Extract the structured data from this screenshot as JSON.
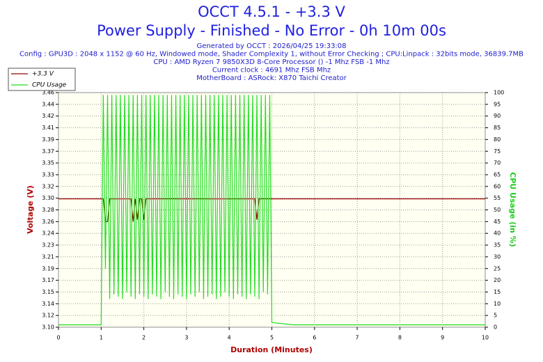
{
  "chart_data": {
    "type": "line",
    "title": "OCCT 4.5.1 - +3.3 V",
    "subtitle": "Power Supply - Finished - No Error - 0h 10m 00s",
    "info_lines": [
      "Generated by OCCT : 2026/04/25 19:33:08",
      "Config : GPU3D : 2048 x 1152 @ 60 Hz, Windowed mode, Shader Complexity 1, without Error Checking ; CPU:Linpack : 32bits mode, 36839.7MB",
      "CPU : AMD Ryzen 7 9850X3D 8-Core Processor () -1 Mhz FSB -1 Mhz",
      "Current clock : 4691 Mhz FSB  Mhz",
      "MotherBoard : ASRock: X870 Taichi Creator"
    ],
    "x_label": "Duration (Minutes)",
    "y_label": "Voltage (V)",
    "y2_label": "CPU Usage (in %)",
    "grid": true,
    "legend": "top-left",
    "xlim": [
      0,
      10
    ],
    "xticks": [
      0,
      1,
      2,
      3,
      4,
      5,
      6,
      7,
      8,
      9,
      10
    ],
    "ylim": [
      3.1,
      3.46
    ],
    "yticks": [
      {
        "value": 3.1,
        "label": "3.10"
      },
      {
        "value": 3.118,
        "label": "3.12"
      },
      {
        "value": 3.136,
        "label": "3.14"
      },
      {
        "value": 3.154,
        "label": "3.15"
      },
      {
        "value": 3.172,
        "label": "3.17"
      },
      {
        "value": 3.19,
        "label": "3.19"
      },
      {
        "value": 3.208,
        "label": "3.21"
      },
      {
        "value": 3.226,
        "label": "3.23"
      },
      {
        "value": 3.244,
        "label": "3.24"
      },
      {
        "value": 3.262,
        "label": "3.26"
      },
      {
        "value": 3.28,
        "label": "3.28"
      },
      {
        "value": 3.298,
        "label": "3.30"
      },
      {
        "value": 3.316,
        "label": "3.32"
      },
      {
        "value": 3.334,
        "label": "3.33"
      },
      {
        "value": 3.352,
        "label": "3.35"
      },
      {
        "value": 3.37,
        "label": "3.37"
      },
      {
        "value": 3.388,
        "label": "3.39"
      },
      {
        "value": 3.406,
        "label": "3.41"
      },
      {
        "value": 3.424,
        "label": "3.42"
      },
      {
        "value": 3.442,
        "label": "3.44"
      },
      {
        "value": 3.46,
        "label": "3.46"
      }
    ],
    "y2lim": [
      0,
      100
    ],
    "y2ticks": [
      0,
      5,
      10,
      15,
      20,
      25,
      30,
      35,
      40,
      45,
      50,
      55,
      60,
      65,
      70,
      75,
      80,
      85,
      90,
      95,
      100
    ],
    "x": [
      0,
      0.5,
      1,
      1.05,
      1.1,
      1.15,
      1.2,
      1.25,
      1.3,
      1.35,
      1.4,
      1.45,
      1.5,
      1.55,
      1.6,
      1.65,
      1.7,
      1.75,
      1.8,
      1.85,
      1.9,
      1.95,
      2,
      2.05,
      2.1,
      2.15,
      2.2,
      2.25,
      2.3,
      2.35,
      2.4,
      2.45,
      2.5,
      2.55,
      2.6,
      2.65,
      2.7,
      2.75,
      2.8,
      2.85,
      2.9,
      2.95,
      3,
      3.05,
      3.1,
      3.15,
      3.2,
      3.25,
      3.3,
      3.35,
      3.4,
      3.45,
      3.5,
      3.55,
      3.6,
      3.65,
      3.7,
      3.75,
      3.8,
      3.85,
      3.9,
      3.95,
      4,
      4.05,
      4.1,
      4.15,
      4.2,
      4.25,
      4.3,
      4.35,
      4.4,
      4.45,
      4.5,
      4.55,
      4.6,
      4.65,
      4.7,
      4.75,
      4.8,
      4.85,
      4.9,
      4.95,
      5,
      5.5,
      6,
      6.5,
      7,
      7.5,
      8,
      8.5,
      9,
      9.5,
      10
    ],
    "series": [
      {
        "name": "+3.3 V",
        "color": "#a00000",
        "values": [
          3.297,
          3.297,
          3.297,
          3.297,
          3.262,
          3.262,
          3.297,
          3.297,
          3.297,
          3.297,
          3.297,
          3.297,
          3.297,
          3.297,
          3.297,
          3.297,
          3.297,
          3.262,
          3.297,
          3.265,
          3.297,
          3.297,
          3.265,
          3.297,
          3.297,
          3.297,
          3.297,
          3.297,
          3.297,
          3.297,
          3.297,
          3.297,
          3.297,
          3.297,
          3.297,
          3.297,
          3.297,
          3.297,
          3.297,
          3.297,
          3.297,
          3.297,
          3.297,
          3.297,
          3.297,
          3.297,
          3.297,
          3.297,
          3.297,
          3.297,
          3.297,
          3.297,
          3.297,
          3.297,
          3.297,
          3.297,
          3.297,
          3.297,
          3.297,
          3.297,
          3.297,
          3.297,
          3.297,
          3.297,
          3.297,
          3.297,
          3.297,
          3.297,
          3.297,
          3.297,
          3.297,
          3.297,
          3.297,
          3.297,
          3.297,
          3.265,
          3.297,
          3.297,
          3.297,
          3.297,
          3.297,
          3.297,
          3.297,
          3.297,
          3.297,
          3.297,
          3.297,
          3.297,
          3.297,
          3.297,
          3.297,
          3.297,
          3.297
        ]
      },
      {
        "name": "CPU Usage",
        "color": "#22dd22",
        "axis": "y2",
        "values": [
          1,
          1,
          1,
          99,
          25,
          99,
          12,
          99,
          14,
          99,
          13,
          99,
          12,
          99,
          15,
          99,
          13,
          99,
          12,
          99,
          14,
          99,
          13,
          99,
          12,
          99,
          14,
          99,
          13,
          99,
          12,
          99,
          15,
          99,
          13,
          99,
          12,
          99,
          14,
          99,
          13,
          99,
          12,
          99,
          14,
          99,
          13,
          99,
          15,
          99,
          12,
          99,
          13,
          99,
          14,
          99,
          12,
          99,
          13,
          99,
          15,
          99,
          13,
          99,
          12,
          99,
          14,
          99,
          13,
          99,
          12,
          99,
          14,
          99,
          13,
          99,
          12,
          99,
          15,
          99,
          14,
          99,
          2,
          1,
          1,
          1,
          1,
          1,
          1,
          1,
          1,
          1,
          1
        ]
      }
    ]
  }
}
